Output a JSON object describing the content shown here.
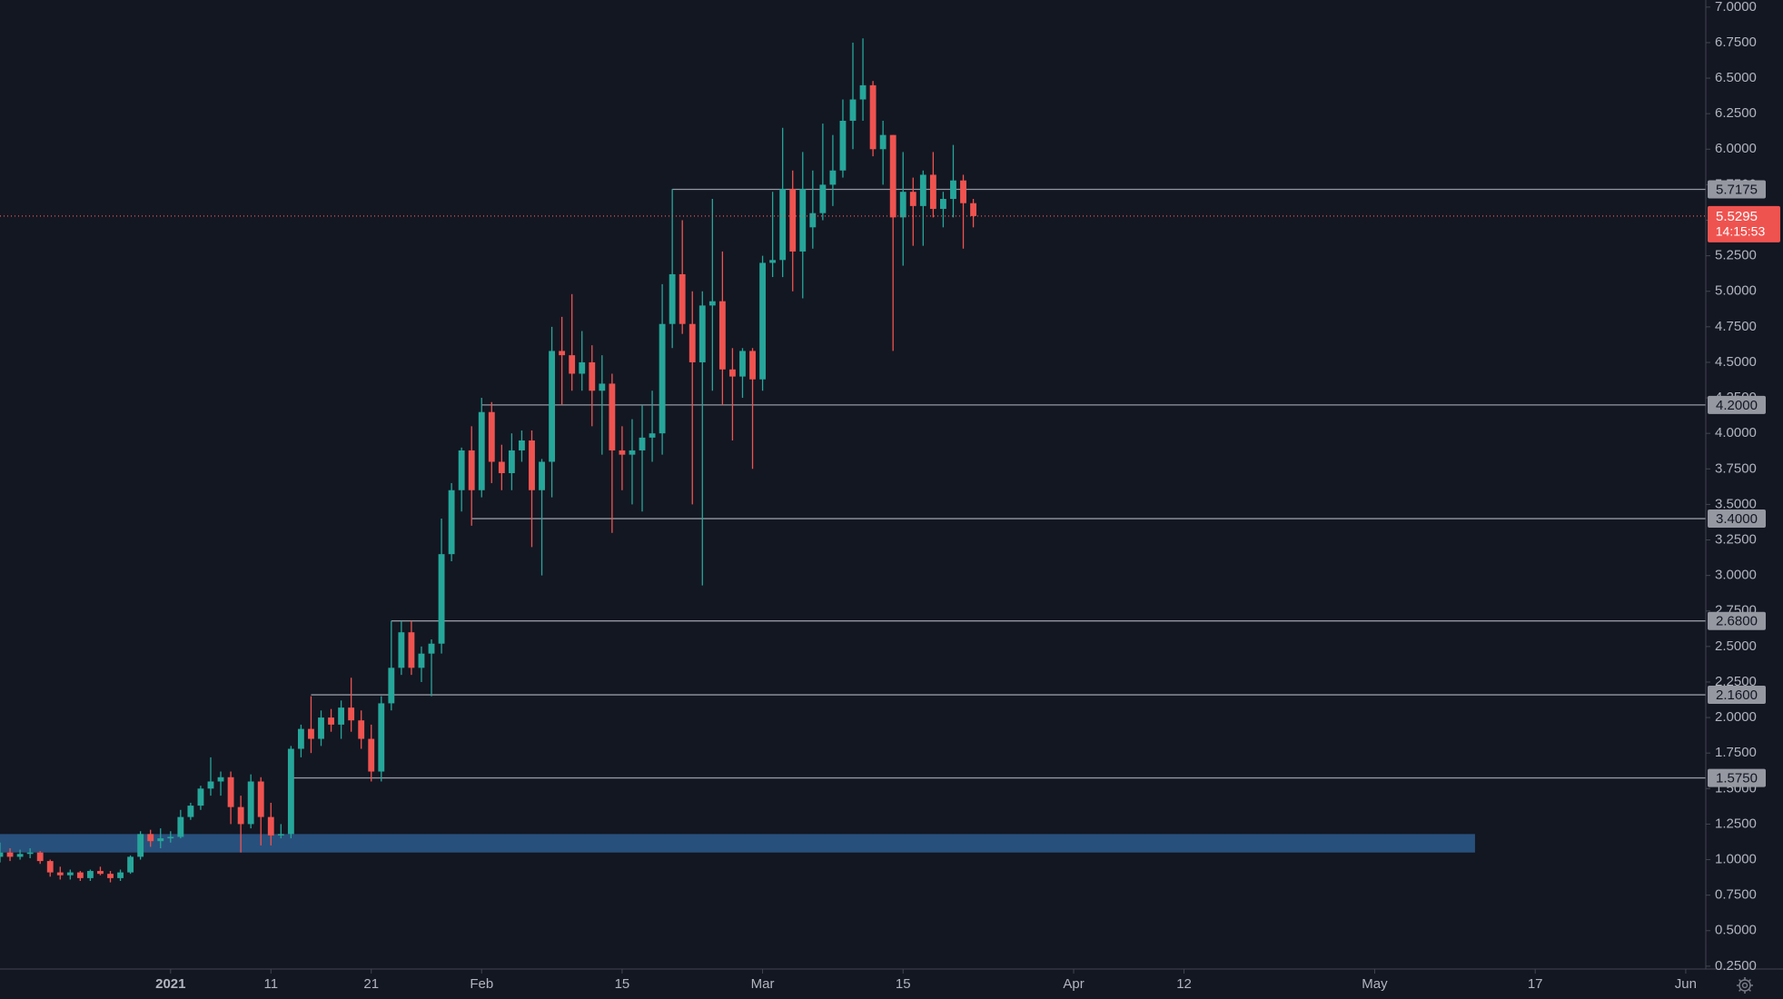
{
  "chart_data": {
    "type": "candlestick",
    "x": [
      "2020-12-15",
      "2020-12-16",
      "2020-12-17",
      "2020-12-18",
      "2020-12-19",
      "2020-12-20",
      "2020-12-21",
      "2020-12-22",
      "2020-12-23",
      "2020-12-24",
      "2020-12-25",
      "2020-12-26",
      "2020-12-27",
      "2020-12-28",
      "2020-12-29",
      "2020-12-30",
      "2020-12-31",
      "2021-01-01",
      "2021-01-02",
      "2021-01-03",
      "2021-01-04",
      "2021-01-05",
      "2021-01-06",
      "2021-01-07",
      "2021-01-08",
      "2021-01-09",
      "2021-01-10",
      "2021-01-11",
      "2021-01-12",
      "2021-01-13",
      "2021-01-14",
      "2021-01-15",
      "2021-01-16",
      "2021-01-17",
      "2021-01-18",
      "2021-01-19",
      "2021-01-20",
      "2021-01-21",
      "2021-01-22",
      "2021-01-23",
      "2021-01-24",
      "2021-01-25",
      "2021-01-26",
      "2021-01-27",
      "2021-01-28",
      "2021-01-29",
      "2021-01-30",
      "2021-01-31",
      "2021-02-01",
      "2021-02-02",
      "2021-02-03",
      "2021-02-04",
      "2021-02-05",
      "2021-02-06",
      "2021-02-07",
      "2021-02-08",
      "2021-02-09",
      "2021-02-10",
      "2021-02-11",
      "2021-02-12",
      "2021-02-13",
      "2021-02-14",
      "2021-02-15",
      "2021-02-16",
      "2021-02-17",
      "2021-02-18",
      "2021-02-19",
      "2021-02-20",
      "2021-02-21",
      "2021-02-22",
      "2021-02-23",
      "2021-02-24",
      "2021-02-25",
      "2021-02-26",
      "2021-02-27",
      "2021-02-28",
      "2021-03-01",
      "2021-03-02",
      "2021-03-03",
      "2021-03-04",
      "2021-03-05",
      "2021-03-06",
      "2021-03-07",
      "2021-03-08",
      "2021-03-09",
      "2021-03-10",
      "2021-03-11",
      "2021-03-12",
      "2021-03-13",
      "2021-03-14",
      "2021-03-15",
      "2021-03-16",
      "2021-03-17",
      "2021-03-18",
      "2021-03-19",
      "2021-03-20",
      "2021-03-21",
      "2021-03-22"
    ],
    "open": [
      1.02,
      1.05,
      1.02,
      1.04,
      1.05,
      0.99,
      0.91,
      0.89,
      0.91,
      0.87,
      0.92,
      0.9,
      0.87,
      0.91,
      1.02,
      1.18,
      1.13,
      1.15,
      1.16,
      1.3,
      1.38,
      1.5,
      1.55,
      1.58,
      1.37,
      1.25,
      1.55,
      1.3,
      1.17,
      1.18,
      1.78,
      1.92,
      1.85,
      2.0,
      1.95,
      2.07,
      1.98,
      1.85,
      1.62,
      2.1,
      2.35,
      2.6,
      2.35,
      2.45,
      2.52,
      3.15,
      3.6,
      3.88,
      3.6,
      4.15,
      3.8,
      3.72,
      3.88,
      3.95,
      3.6,
      3.8,
      4.58,
      4.55,
      4.42,
      4.5,
      4.3,
      4.35,
      3.88,
      3.85,
      3.88,
      3.97,
      4.0,
      4.77,
      5.12,
      4.77,
      4.5,
      4.9,
      4.93,
      4.45,
      4.4,
      4.58,
      4.38,
      5.2,
      5.22,
      5.72,
      5.28,
      5.45,
      5.55,
      5.75,
      5.85,
      6.2,
      6.35,
      6.45,
      6.0,
      6.1,
      5.52,
      5.7,
      5.6,
      5.82,
      5.58,
      5.65,
      5.78,
      5.62
    ],
    "high": [
      1.12,
      1.08,
      1.07,
      1.08,
      1.06,
      1.0,
      0.95,
      0.93,
      0.92,
      0.93,
      0.95,
      0.92,
      0.93,
      1.03,
      1.2,
      1.21,
      1.22,
      1.2,
      1.35,
      1.4,
      1.52,
      1.72,
      1.62,
      1.62,
      1.45,
      1.6,
      1.58,
      1.4,
      1.25,
      1.8,
      1.95,
      2.15,
      2.05,
      2.06,
      2.12,
      2.28,
      2.05,
      1.95,
      2.15,
      2.68,
      2.68,
      2.68,
      2.5,
      2.55,
      3.4,
      3.65,
      3.9,
      4.05,
      4.25,
      4.22,
      3.92,
      4.0,
      4.02,
      4.02,
      3.82,
      4.75,
      4.82,
      4.98,
      4.72,
      4.62,
      4.55,
      4.42,
      4.05,
      4.1,
      4.2,
      4.3,
      5.05,
      5.72,
      5.5,
      5.0,
      5.0,
      5.65,
      5.28,
      4.6,
      4.6,
      4.6,
      5.25,
      5.7,
      6.15,
      5.85,
      5.98,
      5.85,
      6.18,
      6.1,
      6.35,
      6.75,
      6.78,
      6.48,
      6.2,
      6.1,
      5.98,
      5.8,
      5.85,
      5.98,
      5.7,
      6.03,
      5.82,
      5.65
    ],
    "low": [
      0.98,
      0.99,
      1.0,
      1.01,
      0.97,
      0.88,
      0.86,
      0.86,
      0.85,
      0.85,
      0.89,
      0.84,
      0.85,
      0.9,
      1.0,
      1.09,
      1.08,
      1.12,
      1.15,
      1.28,
      1.35,
      1.45,
      1.45,
      1.25,
      1.05,
      1.22,
      1.1,
      1.1,
      1.15,
      1.15,
      1.72,
      1.75,
      1.8,
      1.9,
      1.85,
      1.9,
      1.78,
      1.55,
      1.55,
      2.05,
      2.3,
      2.3,
      2.25,
      2.15,
      2.45,
      3.1,
      3.45,
      3.35,
      3.55,
      3.65,
      3.6,
      3.6,
      3.8,
      3.2,
      3.0,
      3.55,
      4.2,
      4.3,
      4.3,
      4.05,
      3.85,
      3.3,
      3.6,
      3.5,
      3.45,
      3.8,
      3.85,
      4.6,
      4.7,
      3.5,
      2.93,
      4.3,
      4.2,
      3.95,
      4.25,
      3.75,
      4.3,
      5.1,
      5.1,
      5.0,
      4.95,
      5.3,
      5.5,
      5.6,
      5.8,
      6.0,
      6.2,
      5.95,
      5.75,
      4.58,
      5.18,
      5.32,
      5.32,
      5.52,
      5.45,
      5.52,
      5.3,
      5.45
    ],
    "close": [
      1.05,
      1.02,
      1.04,
      1.05,
      0.99,
      0.91,
      0.89,
      0.91,
      0.87,
      0.92,
      0.9,
      0.87,
      0.91,
      1.02,
      1.18,
      1.13,
      1.15,
      1.16,
      1.3,
      1.38,
      1.5,
      1.55,
      1.58,
      1.37,
      1.25,
      1.55,
      1.3,
      1.17,
      1.18,
      1.78,
      1.92,
      1.85,
      2.0,
      1.95,
      2.07,
      1.98,
      1.85,
      1.62,
      2.1,
      2.35,
      2.6,
      2.35,
      2.45,
      2.52,
      3.15,
      3.6,
      3.88,
      3.6,
      4.15,
      3.8,
      3.72,
      3.88,
      3.95,
      3.6,
      3.8,
      4.58,
      4.55,
      4.42,
      4.5,
      4.3,
      4.35,
      3.88,
      3.85,
      3.88,
      3.97,
      4.0,
      4.77,
      5.12,
      4.77,
      4.5,
      4.9,
      4.93,
      4.45,
      4.4,
      4.58,
      4.38,
      5.2,
      5.22,
      5.72,
      5.28,
      5.72,
      5.55,
      5.75,
      5.85,
      6.2,
      6.35,
      6.45,
      6.0,
      6.1,
      5.52,
      5.7,
      5.6,
      5.82,
      5.58,
      5.65,
      5.78,
      5.62,
      5.5295
    ],
    "up_color": "#26a69a",
    "down_color": "#ef5350",
    "xlim": [
      "2020-12-15",
      "2021-06-03"
    ],
    "xticks": [
      {
        "value": "2021-01-01",
        "label": "2021"
      },
      {
        "value": "2021-01-11",
        "label": "11"
      },
      {
        "value": "2021-01-21",
        "label": "21"
      },
      {
        "value": "2021-02-01",
        "label": "Feb"
      },
      {
        "value": "2021-02-15",
        "label": "15"
      },
      {
        "value": "2021-03-01",
        "label": "Mar"
      },
      {
        "value": "2021-03-15",
        "label": "15"
      },
      {
        "value": "2021-04-01",
        "label": "Apr"
      },
      {
        "value": "2021-04-12",
        "label": "12"
      },
      {
        "value": "2021-05-01",
        "label": "May"
      },
      {
        "value": "2021-05-17",
        "label": "17"
      },
      {
        "value": "2021-06-01",
        "label": "Jun"
      }
    ],
    "ylim": [
      0.23,
      7.05
    ],
    "yticks": [
      {
        "value": 0.25,
        "label": "0.2500"
      },
      {
        "value": 0.5,
        "label": "0.5000"
      },
      {
        "value": 0.75,
        "label": "0.7500"
      },
      {
        "value": 1,
        "label": "1.0000"
      },
      {
        "value": 1.25,
        "label": "1.2500"
      },
      {
        "value": 1.5,
        "label": "1.5000"
      },
      {
        "value": 1.75,
        "label": "1.7500"
      },
      {
        "value": 2,
        "label": "2.0000"
      },
      {
        "value": 2.25,
        "label": "2.2500"
      },
      {
        "value": 2.5,
        "label": "2.5000"
      },
      {
        "value": 2.75,
        "label": "2.7500"
      },
      {
        "value": 3,
        "label": "3.0000"
      },
      {
        "value": 3.25,
        "label": "3.2500"
      },
      {
        "value": 3.5,
        "label": "3.5000"
      },
      {
        "value": 3.75,
        "label": "3.7500"
      },
      {
        "value": 4,
        "label": "4.0000"
      },
      {
        "value": 4.25,
        "label": "4.2500"
      },
      {
        "value": 4.5,
        "label": "4.5000"
      },
      {
        "value": 4.75,
        "label": "4.7500"
      },
      {
        "value": 5,
        "label": "5.0000"
      },
      {
        "value": 5.25,
        "label": "5.2500"
      },
      {
        "value": 5.5,
        "label": "5.5000"
      },
      {
        "value": 5.75,
        "label": "5.7500"
      },
      {
        "value": 6,
        "label": "6.0000"
      },
      {
        "value": 6.25,
        "label": "6.2500"
      },
      {
        "value": 6.5,
        "label": "6.5000"
      },
      {
        "value": 6.75,
        "label": "6.7500"
      },
      {
        "value": 7,
        "label": "7.0000"
      }
    ],
    "levels": [
      {
        "value": 5.7175,
        "start": "2021-02-20"
      },
      {
        "value": {
          "value": 4.2,
          "label": "4.2000"
        },
        "start": "2021-02-01"
      },
      {
        "value": {
          "value": 3.4,
          "label": "3.4000"
        },
        "start": "2021-01-31"
      },
      {
        "value": {
          "value": 2.68,
          "label": "2.6800"
        },
        "start": "2021-01-23"
      },
      {
        "value": {
          "value": 2.16,
          "label": "2.1600"
        },
        "start": "2021-01-15"
      },
      {
        "value": {
          "value": 1.575,
          "label": "1.5750"
        },
        "start": "2021-01-13"
      }
    ],
    "level_color": "#9598a1",
    "zone": {
      "ylim": [
        1.05,
        1.18
      ],
      "xlim": [
        "2020-12-15",
        "2021-05-11"
      ],
      "color": "#2d5b8c"
    },
    "last": {
      "value": 5.5295,
      "countdown": "14:15:53"
    }
  }
}
